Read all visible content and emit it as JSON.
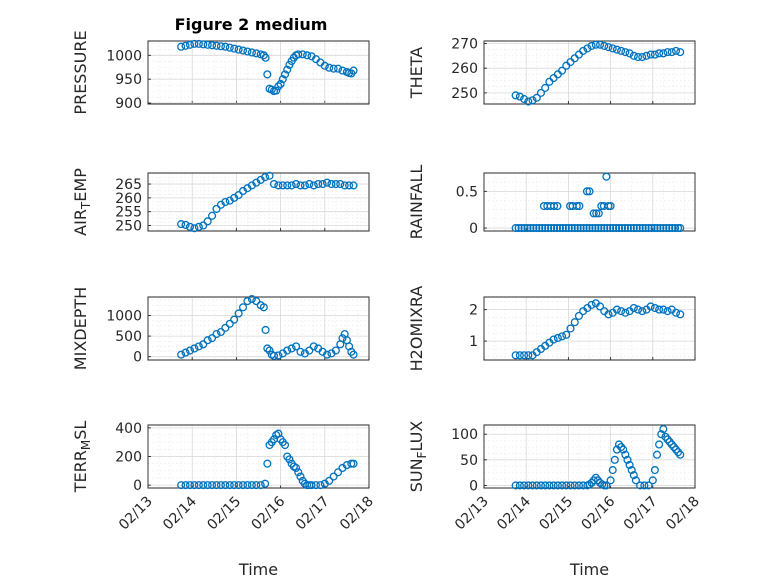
{
  "title": "Figure 2 medium",
  "colors": {
    "marker": "#0072BD",
    "axis": "#262626",
    "grid": "#d9d9d9"
  },
  "chart_data": [
    {
      "type": "scatter",
      "ylabel": "PRESSURE",
      "ylim": [
        898,
        1030
      ],
      "yticks": [
        900,
        950,
        1000
      ],
      "yticklabels": [
        "900",
        "950",
        "1000"
      ],
      "x": [
        13.75,
        13.85,
        13.95,
        14.05,
        14.15,
        14.25,
        14.35,
        14.45,
        14.55,
        14.65,
        14.75,
        14.85,
        14.95,
        15.05,
        15.15,
        15.25,
        15.35,
        15.45,
        15.55,
        15.62,
        15.66,
        15.7,
        15.75,
        15.8,
        15.85,
        15.9,
        15.95,
        16.0,
        16.05,
        16.1,
        16.15,
        16.2,
        16.25,
        16.3,
        16.35,
        16.4,
        16.5,
        16.6,
        16.7,
        16.8,
        16.9,
        17.0,
        17.1,
        17.2,
        17.3,
        17.4,
        17.5,
        17.55,
        17.6,
        17.65
      ],
      "y": [
        1018,
        1020,
        1022,
        1024,
        1024,
        1023,
        1022,
        1021,
        1020,
        1019,
        1018,
        1016,
        1014,
        1012,
        1010,
        1008,
        1006,
        1004,
        1002,
        1000,
        995,
        960,
        930,
        928,
        925,
        926,
        935,
        940,
        950,
        960,
        970,
        980,
        988,
        995,
        1000,
        1002,
        1002,
        1000,
        998,
        992,
        985,
        978,
        974,
        972,
        972,
        968,
        965,
        963,
        962,
        968
      ]
    },
    {
      "type": "scatter",
      "ylabel": "THETA",
      "ylim": [
        245.5,
        271
      ],
      "yticks": [
        250,
        260,
        270
      ],
      "yticklabels": [
        "250",
        "260",
        "270"
      ],
      "x": [
        13.75,
        13.85,
        13.95,
        14.05,
        14.15,
        14.25,
        14.35,
        14.45,
        14.55,
        14.65,
        14.75,
        14.85,
        14.95,
        15.05,
        15.15,
        15.25,
        15.35,
        15.45,
        15.55,
        15.65,
        15.75,
        15.85,
        15.95,
        16.05,
        16.15,
        16.25,
        16.35,
        16.45,
        16.55,
        16.65,
        16.75,
        16.85,
        16.95,
        17.05,
        17.15,
        17.25,
        17.35,
        17.45,
        17.55,
        17.65
      ],
      "y": [
        249,
        248.5,
        247.5,
        246.5,
        247,
        248,
        250,
        252,
        254.5,
        256,
        257.5,
        259,
        261,
        262.5,
        264,
        265.5,
        267,
        268,
        269,
        269.5,
        269.5,
        269,
        268.5,
        268,
        267.5,
        267,
        266.5,
        266,
        265,
        264.5,
        264.5,
        265,
        265.5,
        265.5,
        266,
        266,
        266.5,
        266.5,
        267,
        266.5
      ]
    },
    {
      "type": "scatter",
      "ylabel": "AIR_TEMP",
      "ylim": [
        248,
        269
      ],
      "yticks": [
        250,
        255,
        260,
        265
      ],
      "yticklabels": [
        "250",
        "255",
        "260",
        "265"
      ],
      "x": [
        13.75,
        13.85,
        13.95,
        14.05,
        14.15,
        14.25,
        14.35,
        14.45,
        14.55,
        14.65,
        14.75,
        14.85,
        14.95,
        15.05,
        15.15,
        15.25,
        15.35,
        15.45,
        15.55,
        15.65,
        15.75,
        15.85,
        15.95,
        16.05,
        16.15,
        16.25,
        16.35,
        16.45,
        16.55,
        16.65,
        16.75,
        16.85,
        16.95,
        17.05,
        17.15,
        17.25,
        17.35,
        17.45,
        17.55,
        17.65
      ],
      "y": [
        250.5,
        250.2,
        249.5,
        249,
        249.5,
        250,
        251.5,
        253.5,
        256,
        257.5,
        258.5,
        259,
        260,
        261,
        262.5,
        263.5,
        264.5,
        265.5,
        266.5,
        267.5,
        268,
        265,
        264.5,
        264.5,
        264.5,
        264.5,
        265,
        264.5,
        264.5,
        265,
        264.5,
        265,
        265,
        265.5,
        265,
        265,
        265,
        264.5,
        264.5,
        264.5
      ]
    },
    {
      "type": "scatter",
      "ylabel": "RAINFALL",
      "ylim": [
        -0.04,
        0.75
      ],
      "yticks": [
        0,
        0.5
      ],
      "yticklabels": [
        "0",
        "0.5"
      ],
      "x": [
        13.75,
        13.82,
        13.89,
        13.96,
        14.03,
        14.1,
        14.17,
        14.24,
        14.31,
        14.38,
        14.45,
        14.52,
        14.59,
        14.66,
        14.73,
        14.8,
        14.87,
        14.94,
        15.01,
        15.08,
        15.15,
        15.22,
        15.29,
        15.36,
        15.43,
        15.5,
        15.57,
        15.64,
        15.71,
        15.78,
        15.85,
        15.92,
        15.99,
        16.06,
        16.13,
        16.2,
        16.27,
        16.34,
        16.41,
        16.48,
        16.55,
        16.62,
        16.69,
        16.76,
        16.83,
        16.9,
        16.97,
        17.04,
        17.11,
        17.18,
        17.25,
        17.32,
        17.39,
        17.46,
        17.53,
        17.6,
        17.65,
        14.42,
        14.5,
        14.58,
        14.66,
        14.74,
        15.04,
        15.1,
        15.2,
        15.26,
        15.44,
        15.5,
        15.6,
        15.66,
        15.72,
        15.78,
        15.84,
        15.9,
        15.95,
        16.0
      ],
      "y": [
        0,
        0,
        0,
        0,
        0,
        0,
        0,
        0,
        0,
        0,
        0,
        0,
        0,
        0,
        0,
        0,
        0,
        0,
        0,
        0,
        0,
        0,
        0,
        0,
        0,
        0,
        0,
        0,
        0,
        0,
        0,
        0,
        0,
        0,
        0,
        0,
        0,
        0,
        0,
        0,
        0,
        0,
        0,
        0,
        0,
        0,
        0,
        0,
        0,
        0,
        0,
        0,
        0,
        0,
        0,
        0,
        0,
        0.3,
        0.3,
        0.3,
        0.3,
        0.3,
        0.3,
        0.3,
        0.3,
        0.3,
        0.5,
        0.5,
        0.2,
        0.2,
        0.2,
        0.3,
        0.3,
        0.7,
        0.3,
        0.3
      ]
    },
    {
      "type": "scatter",
      "ylabel": "MIXDEPTH",
      "ylim": [
        -80,
        1450
      ],
      "yticks": [
        0,
        500,
        1000
      ],
      "yticklabels": [
        "0",
        "500",
        "1000"
      ],
      "x": [
        13.75,
        13.85,
        13.95,
        14.05,
        14.15,
        14.25,
        14.35,
        14.45,
        14.55,
        14.65,
        14.75,
        14.85,
        14.95,
        15.05,
        15.15,
        15.25,
        15.35,
        15.45,
        15.55,
        15.62,
        15.66,
        15.7,
        15.75,
        15.8,
        15.85,
        15.95,
        16.05,
        16.15,
        16.25,
        16.35,
        16.45,
        16.55,
        16.65,
        16.75,
        16.85,
        16.95,
        17.05,
        17.15,
        17.25,
        17.35,
        17.4,
        17.45,
        17.5,
        17.55,
        17.6,
        17.65
      ],
      "y": [
        50,
        100,
        150,
        200,
        250,
        300,
        400,
        450,
        550,
        600,
        700,
        800,
        900,
        1050,
        1200,
        1350,
        1400,
        1350,
        1250,
        1200,
        650,
        200,
        150,
        50,
        20,
        30,
        80,
        150,
        200,
        250,
        120,
        80,
        150,
        250,
        200,
        120,
        50,
        80,
        150,
        300,
        450,
        550,
        400,
        250,
        120,
        50
      ]
    },
    {
      "type": "scatter",
      "ylabel": "H2OMIXRA",
      "ylim": [
        0.4,
        2.4
      ],
      "yticks": [
        1,
        2
      ],
      "yticklabels": [
        "1",
        "2"
      ],
      "x": [
        13.75,
        13.85,
        13.95,
        14.05,
        14.15,
        14.25,
        14.35,
        14.45,
        14.55,
        14.65,
        14.75,
        14.85,
        14.95,
        15.05,
        15.15,
        15.25,
        15.35,
        15.45,
        15.55,
        15.65,
        15.75,
        15.85,
        15.95,
        16.05,
        16.15,
        16.25,
        16.35,
        16.45,
        16.55,
        16.65,
        16.75,
        16.85,
        16.95,
        17.05,
        17.15,
        17.25,
        17.35,
        17.45,
        17.55,
        17.65
      ],
      "y": [
        0.55,
        0.55,
        0.55,
        0.55,
        0.55,
        0.65,
        0.75,
        0.85,
        0.95,
        1.05,
        1.1,
        1.15,
        1.2,
        1.4,
        1.6,
        1.8,
        1.95,
        2.05,
        2.15,
        2.2,
        2.1,
        1.95,
        1.85,
        1.9,
        2.0,
        1.95,
        1.9,
        1.95,
        2.05,
        2.0,
        1.95,
        2.0,
        2.1,
        2.05,
        2.0,
        2.0,
        1.95,
        2.0,
        1.9,
        1.85
      ]
    },
    {
      "type": "scatter",
      "ylabel": "TERR_MSL",
      "ylim": [
        -20,
        420
      ],
      "yticks": [
        0,
        200,
        400
      ],
      "yticklabels": [
        "0",
        "200",
        "400"
      ],
      "x": [
        13.75,
        13.85,
        13.95,
        14.05,
        14.15,
        14.25,
        14.35,
        14.45,
        14.55,
        14.65,
        14.75,
        14.85,
        14.95,
        15.05,
        15.15,
        15.25,
        15.35,
        15.45,
        15.55,
        15.65,
        15.7,
        15.75,
        15.8,
        15.85,
        15.9,
        15.95,
        16.0,
        16.05,
        16.1,
        16.15,
        16.2,
        16.25,
        16.3,
        16.35,
        16.4,
        16.45,
        16.5,
        16.55,
        16.6,
        16.65,
        16.7,
        16.8,
        16.9,
        17.0,
        17.1,
        17.2,
        17.3,
        17.4,
        17.5,
        17.6,
        17.65
      ],
      "y": [
        0,
        0,
        0,
        0,
        0,
        0,
        0,
        0,
        0,
        0,
        0,
        0,
        0,
        0,
        0,
        0,
        0,
        0,
        0,
        10,
        150,
        280,
        300,
        320,
        350,
        360,
        320,
        300,
        280,
        200,
        180,
        150,
        130,
        120,
        90,
        60,
        30,
        10,
        0,
        0,
        0,
        0,
        0,
        10,
        30,
        60,
        90,
        120,
        140,
        150,
        150
      ]
    },
    {
      "type": "scatter",
      "ylabel": "SUN_FLUX",
      "ylim": [
        -5,
        118
      ],
      "yticks": [
        0,
        50,
        100
      ],
      "yticklabels": [
        "0",
        "50",
        "100"
      ],
      "x": [
        13.75,
        13.85,
        13.95,
        14.05,
        14.15,
        14.25,
        14.35,
        14.45,
        14.55,
        14.65,
        14.75,
        14.85,
        14.95,
        15.05,
        15.15,
        15.25,
        15.35,
        15.45,
        15.5,
        15.55,
        15.6,
        15.65,
        15.7,
        15.75,
        15.8,
        15.85,
        15.9,
        16.0,
        16.05,
        16.1,
        16.15,
        16.2,
        16.25,
        16.3,
        16.35,
        16.4,
        16.45,
        16.5,
        16.55,
        16.6,
        16.7,
        16.8,
        16.9,
        17.0,
        17.05,
        17.1,
        17.15,
        17.2,
        17.25,
        17.3,
        17.35,
        17.4,
        17.45,
        17.5,
        17.55,
        17.6,
        17.65
      ],
      "y": [
        0,
        0,
        0,
        0,
        0,
        0,
        0,
        0,
        0,
        0,
        0,
        0,
        0,
        0,
        0,
        0,
        0,
        0,
        2,
        5,
        10,
        15,
        10,
        5,
        2,
        0,
        0,
        10,
        30,
        50,
        70,
        80,
        75,
        70,
        60,
        50,
        40,
        30,
        20,
        10,
        0,
        0,
        0,
        10,
        30,
        60,
        80,
        100,
        110,
        95,
        90,
        85,
        80,
        75,
        70,
        65,
        60
      ]
    }
  ],
  "xaxis": {
    "xlim": [
      13,
      18
    ],
    "ticks": [
      13,
      14,
      15,
      16,
      17,
      18
    ],
    "ticklabels": [
      "02/13",
      "02/14",
      "02/15",
      "02/16",
      "02/17",
      "02/18"
    ],
    "xlabel": "Time"
  }
}
